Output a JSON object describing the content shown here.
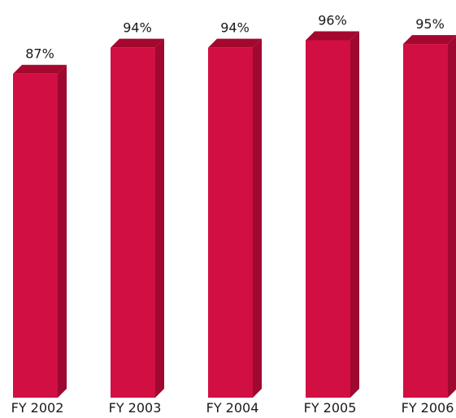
{
  "chart_data": {
    "type": "bar",
    "style": "3d-column",
    "categories": [
      "FY 2002",
      "FY 2003",
      "FY 2004",
      "FY 2005",
      "FY 2006"
    ],
    "values": [
      87,
      94,
      94,
      96,
      95
    ],
    "value_labels": [
      "87%",
      "94%",
      "94%",
      "96%",
      "95%"
    ],
    "title": "",
    "xlabel": "",
    "ylabel": "",
    "ylim": [
      0,
      100
    ],
    "grid": false,
    "legend": "none",
    "colors": {
      "front": "#d20f42",
      "side": "#9e0831",
      "top": "#a4082f"
    }
  }
}
